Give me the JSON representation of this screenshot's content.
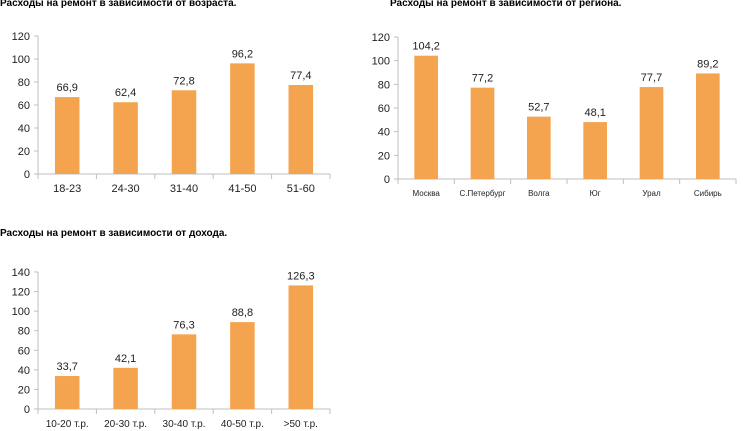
{
  "bar_color": "#F4A44F",
  "chart_data": [
    {
      "type": "bar",
      "title": "Расходы на ремонт в зависимости от возраста.",
      "categories": [
        "18-23",
        "24-30",
        "31-40",
        "41-50",
        "51-60"
      ],
      "values": [
        66.9,
        62.4,
        72.8,
        96.2,
        77.4
      ],
      "value_labels": [
        "66,9",
        "62,4",
        "72,8",
        "96,2",
        "77,4"
      ],
      "yticks": [
        0,
        20,
        40,
        60,
        80,
        100,
        120
      ],
      "ylim": [
        0,
        120
      ],
      "grid": false,
      "xlabel": "",
      "ylabel": ""
    },
    {
      "type": "bar",
      "title": "Расходы на ремонт в зависимости от региона.",
      "categories": [
        "Москва",
        "С.Петербург",
        "Волга",
        "Юг",
        "Урал",
        "Сибирь"
      ],
      "values": [
        104.2,
        77.2,
        52.7,
        48.1,
        77.7,
        89.2
      ],
      "value_labels": [
        "104,2",
        "77,2",
        "52,7",
        "48,1",
        "77,7",
        "89,2"
      ],
      "yticks": [
        0,
        20,
        40,
        60,
        80,
        100,
        120
      ],
      "ylim": [
        0,
        120
      ],
      "grid": false,
      "xlabel": "",
      "ylabel": ""
    },
    {
      "type": "bar",
      "title": "Расходы на ремонт в зависимости от дохода.",
      "categories": [
        "10-20 т.р.",
        "20-30 т.р.",
        "30-40 т.р.",
        "40-50 т.р.",
        ">50 т.р."
      ],
      "values": [
        33.7,
        42.1,
        76.3,
        88.8,
        126.3
      ],
      "value_labels": [
        "33,7",
        "42,1",
        "76,3",
        "88,8",
        "126,3"
      ],
      "yticks": [
        0,
        20,
        40,
        60,
        80,
        100,
        120,
        140
      ],
      "ylim": [
        0,
        140
      ],
      "grid": false,
      "xlabel": "",
      "ylabel": ""
    }
  ]
}
